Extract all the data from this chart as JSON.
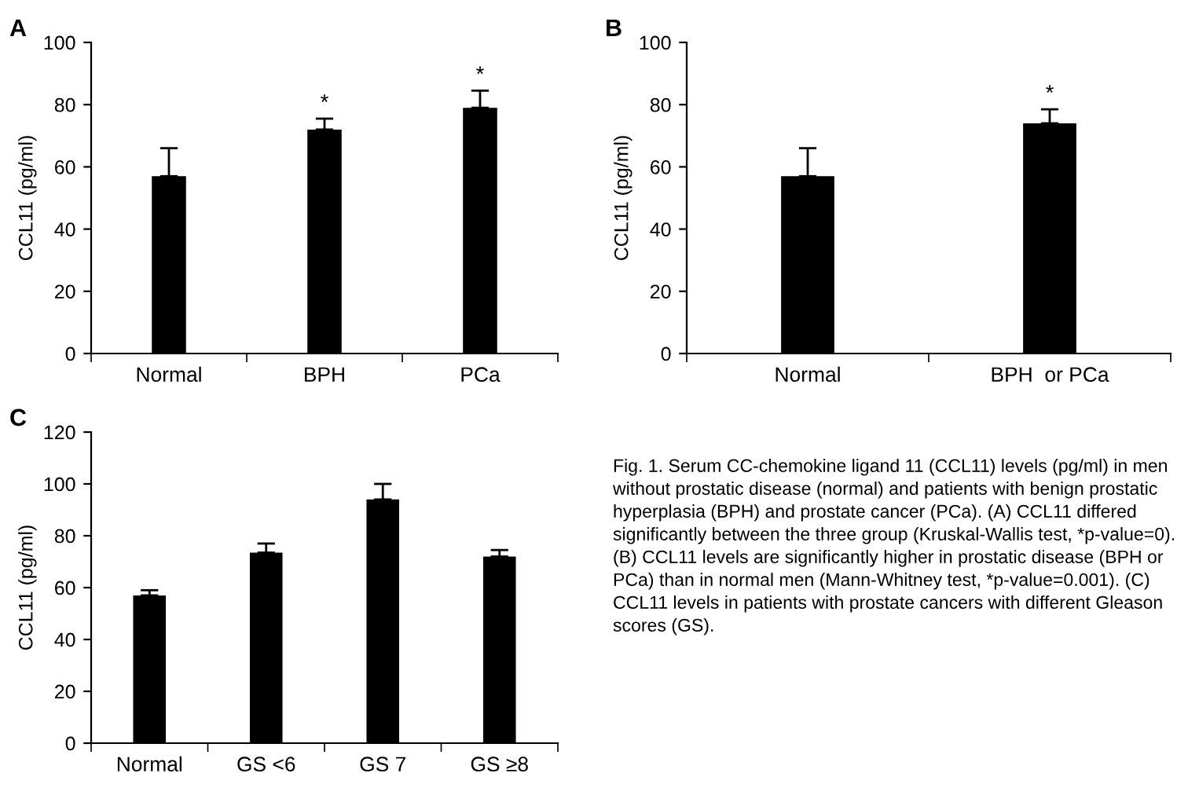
{
  "chart_data": [
    {
      "type": "bar",
      "title": "A",
      "ylabel": "CCL11 (pg/ml)",
      "categories": [
        "Normal",
        "BPH",
        "PCa"
      ],
      "values": [
        57,
        72,
        79
      ],
      "errors": [
        [
          57,
          66
        ],
        [
          72,
          75.5
        ],
        [
          79,
          84.5
        ]
      ],
      "color": "#000000",
      "ylim": [
        0,
        100
      ],
      "yticks": [
        0,
        20,
        40,
        60,
        80,
        100
      ],
      "grid": false,
      "legend": false,
      "annotations": [
        {
          "text": "*",
          "x": "BPH",
          "y": 77
        },
        {
          "text": "*",
          "x": "PCa",
          "y": 86
        }
      ]
    },
    {
      "type": "bar",
      "title": "B",
      "ylabel": "CCL11 (pg/ml)",
      "categories": [
        "Normal",
        "BPH  or PCa"
      ],
      "values": [
        57,
        74
      ],
      "errors": [
        [
          57,
          66
        ],
        [
          74,
          78.5
        ]
      ],
      "color": "#000000",
      "ylim": [
        0,
        100
      ],
      "yticks": [
        0,
        20,
        40,
        60,
        80,
        100
      ],
      "grid": false,
      "legend": false,
      "annotations": [
        {
          "text": "*",
          "x": "BPH  or PCa",
          "y": 80
        }
      ]
    },
    {
      "type": "bar",
      "title": "C",
      "ylabel": "CCL11 (pg/ml)",
      "categories": [
        "Normal",
        "GS <6",
        "GS 7",
        "GS ≥8"
      ],
      "values": [
        57,
        73.5,
        94,
        72
      ],
      "errors": [
        [
          57,
          59
        ],
        [
          73.5,
          77
        ],
        [
          94,
          100
        ],
        [
          72,
          74.5
        ]
      ],
      "color": "#000000",
      "ylim": [
        0,
        120
      ],
      "yticks": [
        0,
        20,
        40,
        60,
        80,
        100,
        120
      ],
      "grid": false,
      "legend": false,
      "annotations": [
        "Fig. 1. Serum CC-chemokine ligand 11 (CCL11) levels (pg/ml) in men without prostatic disease (normal) and patients with benign prostatic hyperplasia (BPH) and prostate cancer (PCa). (A) CCL11 differed significantly between the three group (Kruskal-Wallis test, *p-value=0). (B) CCL11 levels are significantly higher in prostatic disease (BPH or PCa) than in normal men (Mann-Whitney test, *p-value=0.001). (C) CCL11 levels in patients with prostate cancers with different Gleason scores (GS)."
      ]
    }
  ]
}
